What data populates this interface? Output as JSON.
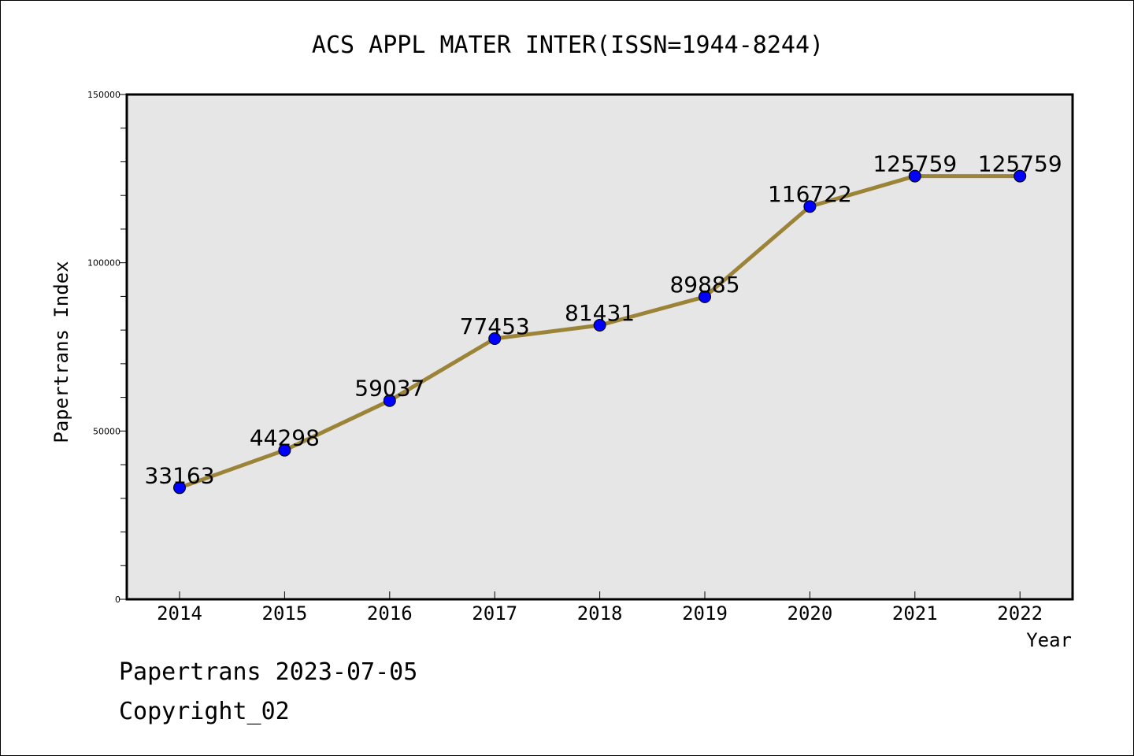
{
  "chart_data": {
    "type": "line",
    "title": "ACS APPL MATER INTER(ISSN=1944-8244)",
    "xlabel": "Year",
    "ylabel": "Papertrans Index",
    "categories": [
      "2014",
      "2015",
      "2016",
      "2017",
      "2018",
      "2019",
      "2020",
      "2021",
      "2022"
    ],
    "values": [
      33163,
      44298,
      59037,
      77453,
      81431,
      89885,
      116722,
      125759,
      125759
    ],
    "data_labels": [
      "33163",
      "44298",
      "59037",
      "77453",
      "81431",
      "89885",
      "116722",
      "125759",
      "125759"
    ],
    "ylim": [
      0,
      150000
    ],
    "y_major_ticks": [
      0,
      50000,
      100000,
      150000
    ],
    "y_major_tick_labels": [
      "0",
      "50000",
      "100000",
      "150000"
    ],
    "y_minor_step": 10000,
    "grid": false,
    "colors": {
      "line": "#9b8437",
      "marker": "#0000ff",
      "plot_background": "#e6e6e6"
    }
  },
  "footer": {
    "line1": "Papertrans 2023-07-05",
    "line2": "Copyright_02"
  }
}
